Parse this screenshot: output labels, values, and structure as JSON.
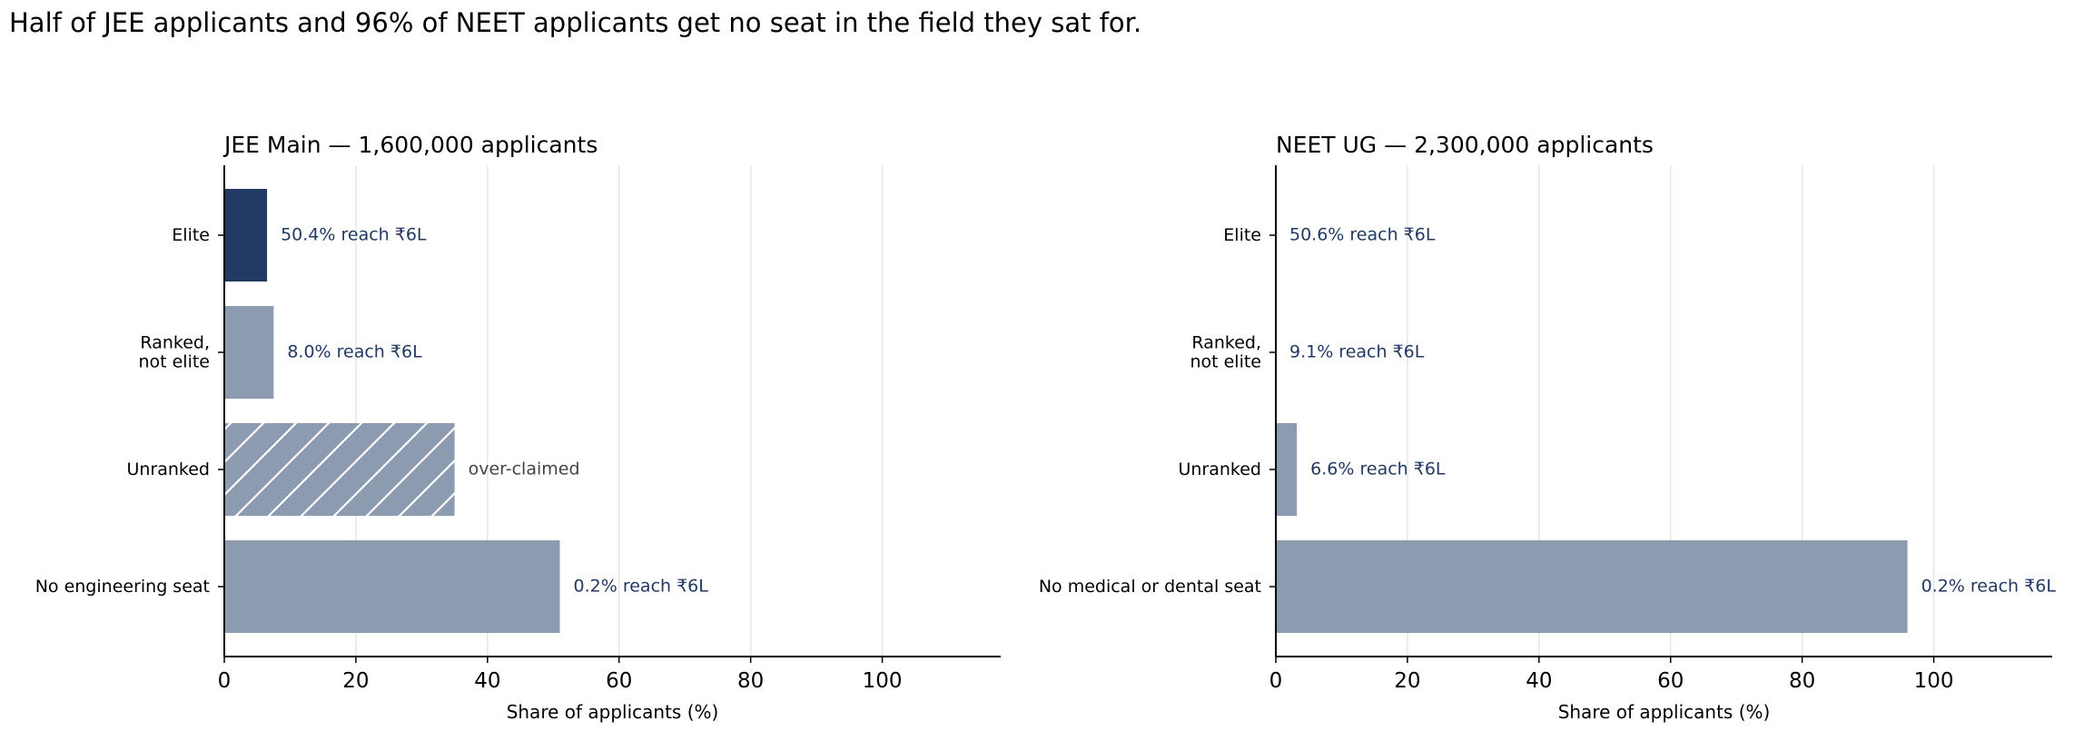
{
  "title": "Half of JEE applicants and 96% of NEET applicants get no seat in the field they sat for.",
  "colors": {
    "elite": "#213963",
    "other": "#8d9bb0",
    "label": "#213963",
    "note": "#444444",
    "grid": "#e6e6e6",
    "hatch": "#ffffff"
  },
  "chart_data": [
    {
      "type": "bar",
      "orientation": "horizontal",
      "title": "JEE Main — 1,600,000 applicants",
      "xlabel": "Share of applicants (%)",
      "xlim": [
        0,
        118
      ],
      "xticks": [
        0,
        20,
        40,
        60,
        80,
        100
      ],
      "grid": "vertical",
      "categories": [
        "Elite",
        "Ranked,\nnot elite",
        "Unranked",
        "No engineering seat"
      ],
      "values": [
        6.5,
        7.5,
        35,
        51
      ],
      "bar_labels": [
        "50.4% reach ₹6L",
        "8.0% reach ₹6L",
        "over-claimed",
        "0.2% reach ₹6L"
      ],
      "bar_styles": [
        "elite",
        "other",
        "hatched",
        "other"
      ]
    },
    {
      "type": "bar",
      "orientation": "horizontal",
      "title": "NEET UG — 2,300,000 applicants",
      "xlabel": "Share of applicants (%)",
      "xlim": [
        0,
        118
      ],
      "xticks": [
        0,
        20,
        40,
        60,
        80,
        100
      ],
      "grid": "vertical",
      "categories": [
        "Elite",
        "Ranked,\nnot elite",
        "Unranked",
        "No medical or dental seat"
      ],
      "values": [
        0,
        0,
        3.2,
        96
      ],
      "bar_labels": [
        "50.6% reach ₹6L",
        "9.1% reach ₹6L",
        "6.6% reach ₹6L",
        "0.2% reach ₹6L"
      ],
      "bar_styles": [
        "elite",
        "other",
        "other",
        "other"
      ]
    }
  ]
}
